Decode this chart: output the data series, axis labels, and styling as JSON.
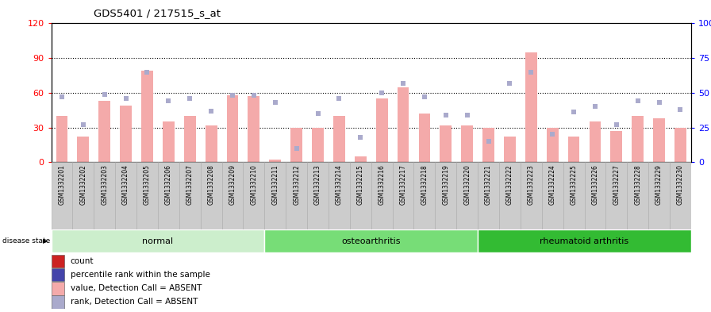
{
  "title": "GDS5401 / 217515_s_at",
  "samples": [
    "GSM1332201",
    "GSM1332202",
    "GSM1332203",
    "GSM1332204",
    "GSM1332205",
    "GSM1332206",
    "GSM1332207",
    "GSM1332208",
    "GSM1332209",
    "GSM1332210",
    "GSM1332211",
    "GSM1332212",
    "GSM1332213",
    "GSM1332214",
    "GSM1332215",
    "GSM1332216",
    "GSM1332217",
    "GSM1332218",
    "GSM1332219",
    "GSM1332220",
    "GSM1332221",
    "GSM1332222",
    "GSM1332223",
    "GSM1332224",
    "GSM1332225",
    "GSM1332226",
    "GSM1332227",
    "GSM1332228",
    "GSM1332229",
    "GSM1332230"
  ],
  "bar_values": [
    40,
    22,
    53,
    49,
    79,
    35,
    40,
    32,
    58,
    57,
    2,
    30,
    30,
    40,
    5,
    55,
    65,
    42,
    32,
    32,
    30,
    22,
    95,
    30,
    22,
    35,
    27,
    40,
    38,
    30
  ],
  "rank_values_pct": [
    47,
    27,
    49,
    46,
    65,
    44,
    46,
    37,
    48,
    48,
    43,
    10,
    35,
    46,
    18,
    50,
    57,
    47,
    34,
    34,
    15,
    57,
    65,
    20,
    36,
    40,
    27,
    44,
    43,
    38
  ],
  "left_yticks": [
    0,
    30,
    60,
    90,
    120
  ],
  "right_yticks": [
    0,
    25,
    50,
    75,
    100
  ],
  "bar_color": "#F4AAAA",
  "rank_color": "#AAAACC",
  "groups": [
    {
      "label": "normal",
      "start": 0,
      "end": 10,
      "color": "#CCEECC"
    },
    {
      "label": "osteoarthritis",
      "start": 10,
      "end": 20,
      "color": "#77DD77"
    },
    {
      "label": "rheumatoid arthritis",
      "start": 20,
      "end": 30,
      "color": "#33BB33"
    }
  ],
  "legend_items": [
    {
      "label": "count",
      "color": "#CC2222"
    },
    {
      "label": "percentile rank within the sample",
      "color": "#4444AA"
    },
    {
      "label": "value, Detection Call = ABSENT",
      "color": "#F4AAAA"
    },
    {
      "label": "rank, Detection Call = ABSENT",
      "color": "#AAAACC"
    }
  ],
  "tick_area_color": "#CCCCCC",
  "plot_bg_color": "#FFFFFF"
}
